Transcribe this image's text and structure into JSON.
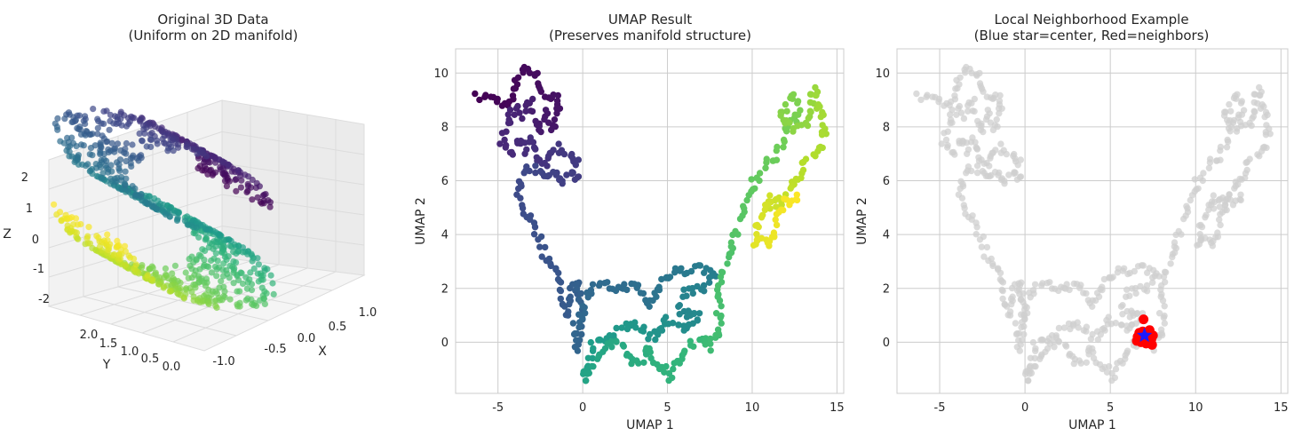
{
  "figure": {
    "colors": {
      "viridis_start": "#440154",
      "viridis_mid": "#21918c",
      "viridis_end": "#fde725",
      "gray_points": "#cfcfcf",
      "neighbors": "#ff0000",
      "center": "#1a1aff"
    }
  },
  "chart_data": [
    {
      "type": "scatter3d",
      "title": "Original 3D Data",
      "subtitle": "(Uniform on 2D manifold)",
      "xlabel": "X",
      "ylabel": "Y",
      "zlabel": "Z",
      "xticks": [
        "-1.0",
        "-0.5",
        "0.0",
        "0.5",
        "1.0"
      ],
      "yticks": [
        "0.0",
        "0.5",
        "1.0",
        "1.5",
        "2.0"
      ],
      "zticks": [
        "-2",
        "-1",
        "0",
        "1",
        "2"
      ],
      "xlim": [
        -1.2,
        1.2
      ],
      "ylim": [
        0,
        2.2
      ],
      "zlim": [
        -2.3,
        2.3
      ],
      "colormap": "viridis",
      "description": "S-shaped surface: three stacked layers colored purple (top) through teal (middle) to yellow (bottom)"
    },
    {
      "type": "scatter",
      "title": "UMAP Result",
      "subtitle": "(Preserves manifold structure)",
      "xlabel": "UMAP 1",
      "ylabel": "UMAP 2",
      "xticks": [
        "-5",
        "0",
        "5",
        "10",
        "15"
      ],
      "yticks": [
        "0",
        "2",
        "4",
        "6",
        "8",
        "10"
      ],
      "xlim": [
        -7.5,
        15.4
      ],
      "ylim": [
        -1.9,
        10.9
      ],
      "grid": true,
      "colormap": "viridis",
      "path": [
        [
          -6.2,
          9.1
        ],
        [
          -5.5,
          9.1
        ],
        [
          -4.3,
          8.8
        ],
        [
          -3.9,
          9.8
        ],
        [
          -3.4,
          10.2
        ],
        [
          -2.8,
          10.0
        ],
        [
          -2.4,
          9.3
        ],
        [
          -2.0,
          9.0
        ],
        [
          -1.6,
          9.2
        ],
        [
          -1.4,
          8.4
        ],
        [
          -1.9,
          8.0
        ],
        [
          -2.3,
          8.5
        ],
        [
          -2.5,
          7.9
        ],
        [
          -2.9,
          8.3
        ],
        [
          -3.0,
          8.9
        ],
        [
          -3.5,
          8.4
        ],
        [
          -3.9,
          8.7
        ],
        [
          -4.4,
          8.3
        ],
        [
          -4.8,
          7.4
        ],
        [
          -4.2,
          7.0
        ],
        [
          -3.7,
          7.6
        ],
        [
          -3.4,
          7.1
        ],
        [
          -3.1,
          7.6
        ],
        [
          -2.7,
          7.1
        ],
        [
          -2.5,
          6.5
        ],
        [
          -2.0,
          6.9
        ],
        [
          -1.6,
          7.3
        ],
        [
          -1.0,
          7.0
        ],
        [
          -0.4,
          6.8
        ],
        [
          -0.2,
          6.1
        ],
        [
          -0.8,
          6.4
        ],
        [
          -1.3,
          5.9
        ],
        [
          -1.8,
          6.3
        ],
        [
          -2.2,
          6.1
        ],
        [
          -2.6,
          6.2
        ],
        [
          -3.1,
          6.5
        ],
        [
          -3.6,
          6.2
        ],
        [
          -3.9,
          5.5
        ],
        [
          -3.6,
          5.0
        ],
        [
          -3.2,
          4.6
        ],
        [
          -2.8,
          4.3
        ],
        [
          -2.5,
          3.8
        ],
        [
          -2.3,
          3.3
        ],
        [
          -1.5,
          2.5
        ],
        [
          -1.2,
          2.2
        ],
        [
          -1.4,
          1.7
        ],
        [
          -1.0,
          1.0
        ],
        [
          -0.8,
          1.8
        ],
        [
          -0.3,
          2.0
        ],
        [
          -0.5,
          2.3
        ],
        [
          -0.1,
          1.9
        ],
        [
          -0.1,
          0.7
        ],
        [
          -0.3,
          -0.2
        ],
        [
          -0.4,
          0.6
        ],
        [
          -0.2,
          0.9
        ],
        [
          0.5,
          2.0
        ],
        [
          1.2,
          2.1
        ],
        [
          2.0,
          2.0
        ],
        [
          2.7,
          2.1
        ],
        [
          3.3,
          2.0
        ],
        [
          3.7,
          1.6
        ],
        [
          4.0,
          1.4
        ],
        [
          4.3,
          1.8
        ],
        [
          4.7,
          2.3
        ],
        [
          5.1,
          2.5
        ],
        [
          5.6,
          2.7
        ],
        [
          6.1,
          2.6
        ],
        [
          6.6,
          2.8
        ],
        [
          7.1,
          2.7
        ],
        [
          7.7,
          2.6
        ],
        [
          7.4,
          2.2
        ],
        [
          6.9,
          1.9
        ],
        [
          6.4,
          2.0
        ],
        [
          5.9,
          1.8
        ],
        [
          5.6,
          1.3
        ],
        [
          6.0,
          1.0
        ],
        [
          6.6,
          1.1
        ],
        [
          6.9,
          0.9
        ],
        [
          6.4,
          0.7
        ],
        [
          6.0,
          0.4
        ],
        [
          5.5,
          0.6
        ],
        [
          4.9,
          0.9
        ],
        [
          4.6,
          0.5
        ],
        [
          4.3,
          0.2
        ],
        [
          3.8,
          0.3
        ],
        [
          3.2,
          0.7
        ],
        [
          2.6,
          0.6
        ],
        [
          2.1,
          0.4
        ],
        [
          1.6,
          0.1
        ],
        [
          1.1,
          0.2
        ],
        [
          0.6,
          0.0
        ],
        [
          0.6,
          -0.5
        ],
        [
          0.2,
          -0.9
        ],
        [
          0.0,
          -1.2
        ],
        [
          0.3,
          -1.3
        ],
        [
          0.8,
          -0.7
        ],
        [
          1.3,
          -0.2
        ],
        [
          1.9,
          -0.1
        ],
        [
          2.4,
          -0.2
        ],
        [
          2.7,
          -0.6
        ],
        [
          3.2,
          -0.8
        ],
        [
          3.6,
          -0.5
        ],
        [
          3.9,
          -0.3
        ],
        [
          4.3,
          -0.7
        ],
        [
          4.7,
          -0.9
        ],
        [
          5.2,
          -1.3
        ],
        [
          5.6,
          -0.8
        ],
        [
          6.0,
          -0.3
        ],
        [
          6.5,
          -0.1
        ],
        [
          7.0,
          0.1
        ],
        [
          7.3,
          0.2
        ],
        [
          7.4,
          -0.2
        ],
        [
          7.9,
          0.2
        ],
        [
          8.1,
          0.5
        ],
        [
          8.0,
          1.6
        ],
        [
          8.3,
          2.6
        ],
        [
          8.6,
          3.2
        ],
        [
          8.8,
          3.7
        ],
        [
          9.1,
          4.1
        ],
        [
          9.3,
          4.6
        ],
        [
          9.6,
          5.1
        ],
        [
          9.9,
          5.6
        ],
        [
          10.1,
          6.0
        ],
        [
          10.6,
          6.3
        ],
        [
          11.0,
          6.7
        ],
        [
          11.4,
          6.9
        ],
        [
          11.7,
          7.4
        ],
        [
          11.9,
          7.8
        ],
        [
          12.4,
          8.2
        ],
        [
          12.8,
          8.7
        ],
        [
          12.4,
          9.3
        ],
        [
          12.1,
          8.8
        ],
        [
          11.6,
          8.5
        ],
        [
          11.9,
          8.2
        ],
        [
          12.7,
          7.9
        ],
        [
          13.2,
          8.1
        ],
        [
          13.5,
          8.8
        ],
        [
          13.6,
          9.4
        ],
        [
          13.9,
          9.1
        ],
        [
          14.0,
          8.6
        ],
        [
          14.3,
          8.3
        ],
        [
          14.2,
          7.7
        ],
        [
          14.0,
          7.1
        ],
        [
          13.5,
          6.9
        ],
        [
          13.0,
          6.6
        ],
        [
          12.8,
          6.1
        ],
        [
          12.4,
          5.9
        ],
        [
          12.2,
          5.6
        ],
        [
          11.8,
          5.1
        ],
        [
          11.6,
          5.5
        ],
        [
          11.2,
          5.0
        ],
        [
          10.9,
          5.3
        ],
        [
          10.6,
          5.0
        ],
        [
          10.3,
          4.5
        ],
        [
          10.3,
          4.0
        ],
        [
          10.1,
          3.6
        ],
        [
          10.6,
          3.9
        ],
        [
          11.0,
          3.6
        ],
        [
          11.4,
          4.1
        ],
        [
          11.6,
          4.8
        ],
        [
          11.9,
          5.2
        ],
        [
          12.5,
          5.3
        ],
        [
          12.9,
          5.6
        ]
      ]
    },
    {
      "type": "scatter",
      "title": "Local Neighborhood Example",
      "subtitle": "(Blue star=center, Red=neighbors)",
      "xlabel": "UMAP 1",
      "ylabel": "UMAP 2",
      "xticks": [
        "-5",
        "0",
        "5",
        "10",
        "15"
      ],
      "yticks": [
        "0",
        "2",
        "4",
        "6",
        "8",
        "10"
      ],
      "xlim": [
        -7.5,
        15.4
      ],
      "ylim": [
        -1.9,
        10.9
      ],
      "grid": true,
      "background_points": "same as UMAP Result, in light gray",
      "center": [
        7.0,
        0.25
      ],
      "neighbors": [
        [
          6.6,
          0.2
        ],
        [
          6.8,
          0.0
        ],
        [
          7.1,
          -0.05
        ],
        [
          7.4,
          0.1
        ],
        [
          7.5,
          0.25
        ],
        [
          7.3,
          0.45
        ],
        [
          6.9,
          0.4
        ],
        [
          6.7,
          0.35
        ],
        [
          7.2,
          0.2
        ],
        [
          6.95,
          0.85
        ],
        [
          7.45,
          -0.1
        ],
        [
          6.55,
          0.05
        ]
      ]
    }
  ]
}
